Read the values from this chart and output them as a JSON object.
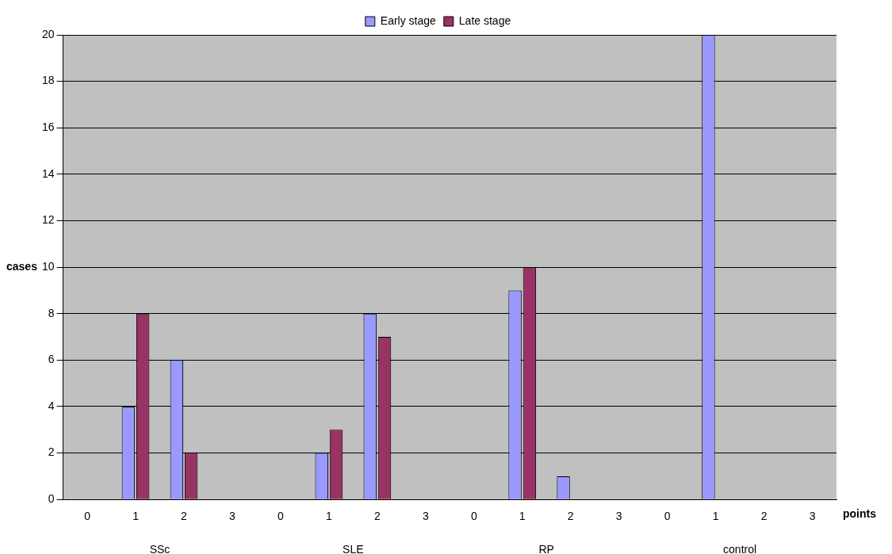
{
  "chart_data": {
    "type": "bar",
    "categories": [
      "0",
      "1",
      "2",
      "3",
      "0",
      "1",
      "2",
      "3",
      "0",
      "1",
      "2",
      "3",
      "0",
      "1",
      "2",
      "3"
    ],
    "series": [
      {
        "name": "Early stage",
        "color": "#9999ff",
        "values": [
          0,
          4,
          6,
          0,
          0,
          2,
          8,
          0,
          0,
          9,
          1,
          0,
          0,
          20,
          0,
          0
        ]
      },
      {
        "name": "Late stage",
        "color": "#993366",
        "values": [
          0,
          8,
          2,
          0,
          0,
          3,
          7,
          0,
          0,
          10,
          0,
          0,
          0,
          0,
          0,
          0
        ]
      }
    ],
    "annotations": [
      "SSc",
      "SLE",
      "RP",
      "control"
    ],
    "xlabel": "points",
    "ylabel": "cases",
    "ylim": [
      0,
      20
    ],
    "yticks": [
      0,
      2,
      4,
      6,
      8,
      10,
      12,
      14,
      16,
      18,
      20
    ],
    "grid": "y",
    "legend": "top"
  }
}
